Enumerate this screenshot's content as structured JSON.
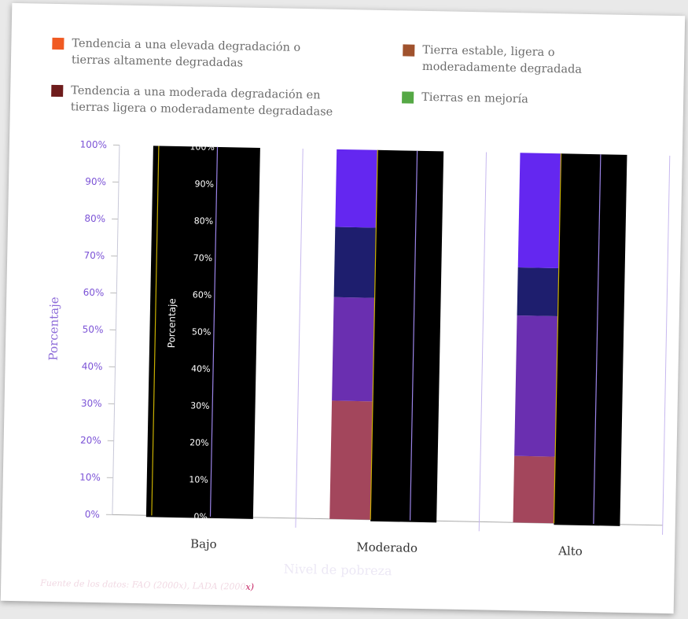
{
  "legend": [
    {
      "label": "Tendencia a una elevada degradación o\ntierras altamente degradadas",
      "color": "#f05a22"
    },
    {
      "label": "Tierra estable, ligera o\nmoderadamente degradada",
      "color": "#a0522d"
    },
    {
      "label": "Tendencia a una moderada degradación en\ntierras ligera o moderadamente degradadase",
      "color": "#6e1c1c"
    },
    {
      "label": "Tierras en mejoría",
      "color": "#55a845"
    }
  ],
  "chart_data": {
    "type": "bar",
    "stacked": true,
    "categories": [
      "Bajo",
      "Moderado",
      "Alto"
    ],
    "y_tick_labels": [
      "0%",
      "10%",
      "20%",
      "30%",
      "40%",
      "50%",
      "60%",
      "70%",
      "80%",
      "90%",
      "100%"
    ],
    "ylim": [
      0,
      100
    ],
    "ylabel": "Porcentaje",
    "xlabel": "Nivel de pobreza",
    "series": [
      {
        "values": [
          null,
          32,
          18
        ],
        "color": "#a3465c"
      },
      {
        "values": [
          null,
          28,
          38
        ],
        "color": "#6a2fb0"
      },
      {
        "values": [
          null,
          19,
          13
        ],
        "color": "#1e1e6e"
      },
      {
        "values": [
          null,
          21,
          31
        ],
        "color": "#6427f0"
      }
    ],
    "overlay_tick_labels": [
      "0%",
      "10%",
      "20%",
      "30%",
      "40%",
      "50%",
      "60%",
      "70%",
      "80%",
      "90%",
      "100%"
    ],
    "overlay_ylabel": "Porcentaje"
  },
  "source": {
    "text": "Fuente de los datos: FAO (2000x), LADA (2000",
    "highlight": "x)"
  },
  "colors": {
    "axis_tick_label": "#7b52d6",
    "axis_title": "#8c6ad8",
    "overlay_black": "#000000",
    "overlay_yellow_line": "#c9b000",
    "overlay_violet_line": "#9b84e8"
  }
}
